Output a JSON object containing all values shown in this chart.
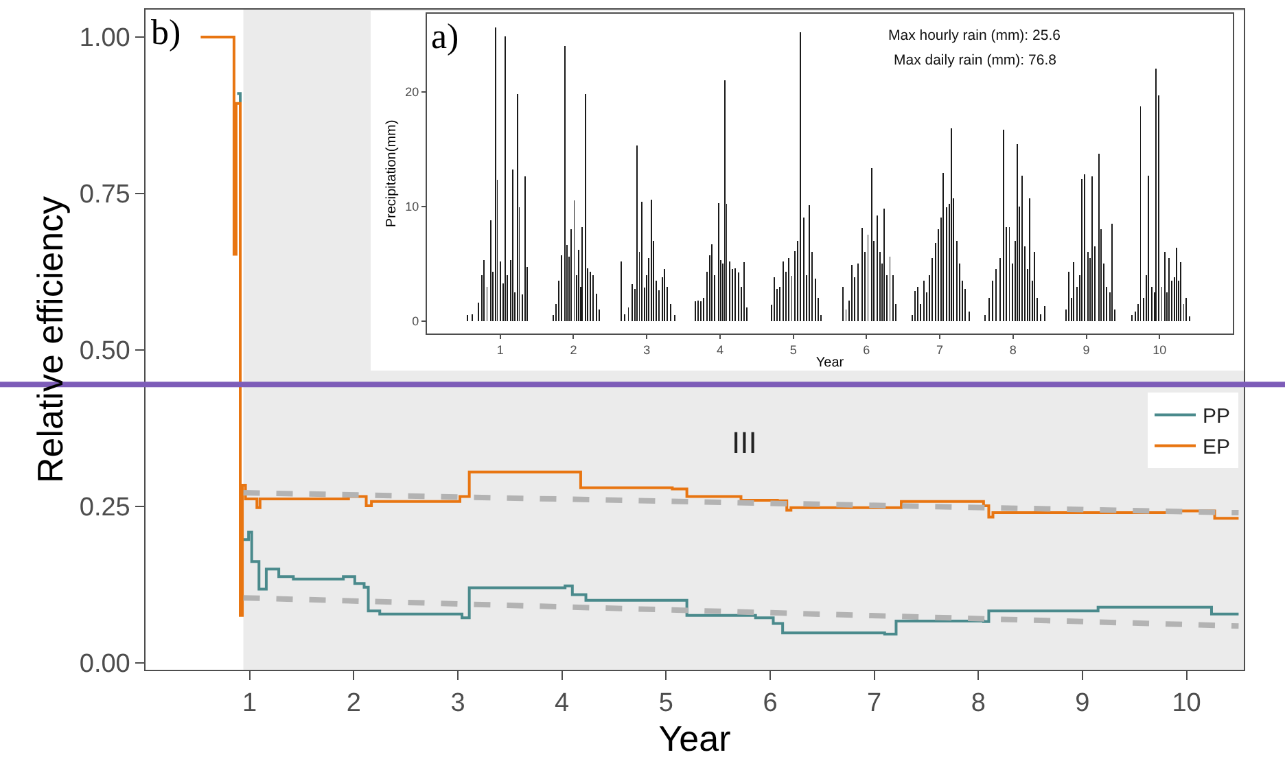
{
  "chart_data": [
    {
      "type": "bar",
      "xlabel": "Year",
      "ylabel": "Precipitation(mm)",
      "color": "#1a1a1a",
      "annotations": [
        "a)",
        "Max hourly rain (mm): 25.6",
        "Max daily rain (mm): 76.8"
      ],
      "xlim": [
        0,
        11
      ],
      "ylim": [
        -1.1,
        26.8
      ],
      "xticks": [
        1,
        2,
        3,
        4,
        5,
        6,
        7,
        8,
        9,
        10
      ],
      "yticks": [
        0,
        10,
        20
      ],
      "x": [
        0.55,
        0.62,
        0.7,
        0.75,
        0.78,
        0.82,
        0.87,
        0.9,
        0.94,
        0.96,
        1.0,
        1.04,
        1.07,
        1.1,
        1.14,
        1.17,
        1.2,
        1.24,
        1.26,
        1.3,
        1.34,
        1.37,
        1.41,
        1.72,
        1.76,
        1.8,
        1.84,
        1.88,
        1.91,
        1.94,
        1.97,
        2.01,
        2.04,
        2.07,
        2.1,
        2.12,
        2.16,
        2.19,
        2.23,
        2.27,
        2.31,
        2.35,
        2.65,
        2.7,
        2.75,
        2.8,
        2.84,
        2.87,
        2.9,
        2.93,
        2.97,
        3.0,
        3.03,
        3.06,
        3.09,
        3.13,
        3.17,
        3.21,
        3.24,
        3.28,
        3.33,
        3.38,
        3.66,
        3.7,
        3.74,
        3.78,
        3.82,
        3.86,
        3.89,
        3.93,
        3.98,
        4.01,
        4.04,
        4.07,
        4.09,
        4.13,
        4.17,
        4.21,
        4.25,
        4.29,
        4.33,
        4.37,
        4.7,
        4.74,
        4.78,
        4.82,
        4.86,
        4.9,
        4.94,
        4.98,
        5.02,
        5.06,
        5.1,
        5.14,
        5.18,
        5.22,
        5.26,
        5.3,
        5.34,
        5.38,
        5.68,
        5.72,
        5.76,
        5.8,
        5.84,
        5.88,
        5.94,
        5.98,
        6.02,
        6.07,
        6.1,
        6.15,
        6.18,
        6.21,
        6.24,
        6.28,
        6.32,
        6.36,
        6.4,
        6.62,
        6.66,
        6.7,
        6.74,
        6.78,
        6.82,
        6.86,
        6.9,
        6.94,
        6.98,
        7.02,
        7.05,
        7.09,
        7.13,
        7.16,
        7.19,
        7.23,
        7.27,
        7.31,
        7.35,
        7.4,
        7.62,
        7.67,
        7.72,
        7.77,
        7.82,
        7.87,
        7.91,
        7.95,
        7.99,
        8.03,
        8.06,
        8.09,
        8.12,
        8.16,
        8.2,
        8.23,
        8.26,
        8.29,
        8.33,
        8.38,
        8.43,
        8.72,
        8.76,
        8.8,
        8.83,
        8.87,
        8.91,
        8.94,
        8.98,
        9.02,
        9.05,
        9.08,
        9.12,
        9.17,
        9.2,
        9.24,
        9.28,
        9.32,
        9.35,
        9.39,
        9.62,
        9.67,
        9.71,
        9.74,
        9.78,
        9.82,
        9.85,
        9.89,
        9.93,
        9.95,
        9.99,
        10.03,
        10.07,
        10.1,
        10.13,
        10.17,
        10.2,
        10.23,
        10.26,
        10.29,
        10.33,
        10.36,
        10.41
      ],
      "values": [
        0.5,
        0.6,
        1.6,
        4,
        5.3,
        3,
        8.8,
        4.3,
        25.6,
        12.3,
        5.2,
        3.3,
        24.8,
        4.0,
        5.3,
        13.2,
        2.5,
        19.8,
        9.9,
        2.3,
        12.6,
        4.7,
        null,
        0.5,
        1.5,
        3.5,
        5.7,
        24.0,
        6.6,
        5.6,
        8.0,
        10.5,
        4.0,
        6.2,
        3.0,
        8.2,
        19.8,
        4.6,
        4.3,
        4.0,
        2.4,
        1.0,
        5.2,
        0.6,
        1.2,
        3.2,
        2.8,
        15.3,
        6.0,
        10.4,
        2.9,
        4.0,
        5.5,
        10.6,
        7.0,
        3.5,
        2.7,
        3.8,
        4.5,
        3.0,
        1.5,
        0.5,
        1.7,
        1.8,
        1.7,
        2.0,
        4.3,
        5.7,
        6.7,
        4.0,
        10.3,
        5.3,
        5.0,
        21.0,
        10.2,
        5.2,
        4.5,
        4.6,
        4.2,
        3.0,
        5.1,
        1.2,
        1.4,
        3.8,
        2.8,
        3.0,
        5.2,
        4.3,
        5.5,
        3.9,
        6.1,
        7.0,
        25.2,
        9.0,
        4.0,
        10.1,
        6.0,
        3.7,
        2.0,
        0.5,
        3.0,
        1.0,
        1.8,
        4.9,
        3.8,
        5.0,
        8.1,
        6.0,
        7.5,
        13.3,
        7.0,
        9.2,
        6.0,
        5.0,
        9.8,
        4.0,
        5.6,
        4.0,
        1.5,
        0.5,
        2.6,
        3.0,
        1.5,
        3.5,
        2.5,
        4.0,
        5.5,
        6.8,
        8.0,
        9.0,
        12.9,
        9.9,
        10.2,
        16.8,
        10.7,
        7.0,
        5.0,
        3.5,
        2.8,
        0.8,
        0.5,
        2.0,
        3.5,
        4.5,
        5.5,
        16.7,
        8.2,
        8.2,
        5.0,
        7.0,
        15.4,
        10.0,
        12.7,
        6.5,
        4.5,
        10.7,
        3.5,
        6.0,
        2.0,
        0.6,
        1.3,
        1.0,
        4.3,
        2.0,
        5.1,
        3.0,
        4.0,
        12.4,
        12.8,
        6.0,
        5.5,
        12.6,
        6.5,
        14.6,
        8.0,
        5.0,
        3.0,
        2.5,
        8.5,
        1.0,
        0.5,
        0.8,
        1.5,
        18.7,
        2.0,
        4.0,
        12.7,
        3.0,
        2.5,
        22.0,
        19.7,
        3.0,
        6.0,
        2.5,
        5.5,
        3.5,
        3.8,
        6.4,
        3.5,
        5.1,
        1.5,
        2.0,
        0.4
      ]
    },
    {
      "type": "step",
      "xlabel": "Year",
      "ylabel": "Relative efficiency",
      "legend": "right",
      "annotations": [
        "b)"
      ],
      "xlim": [
        0,
        10.55
      ],
      "ylim": [
        -0.011,
        1.044
      ],
      "xticks": [
        1,
        2,
        3,
        4,
        5,
        6,
        7,
        8,
        9,
        10
      ],
      "yticks": [
        {
          "value": 0,
          "label": "0.00"
        },
        {
          "value": 0.25,
          "label": "0.25"
        },
        {
          "value": 0.5,
          "label": "0.50"
        },
        {
          "value": 0.75,
          "label": "0.75"
        },
        {
          "value": 1,
          "label": "1.00"
        }
      ],
      "bands": [
        {
          "axis": "x",
          "from": 0.94,
          "to": 10.55,
          "label": "III",
          "color": "#ebebeb"
        }
      ],
      "ref_lines": [
        {
          "axis": "y",
          "value": 0.445,
          "color": "#7d5cb8"
        }
      ],
      "series": [
        {
          "name": "PP",
          "color": "#4a8a8c",
          "x": [
            0.88,
            0.91,
            0.99,
            1.02,
            1.09,
            1.13,
            1.16,
            1.22,
            1.28,
            1.42,
            1.9,
            2.01,
            2.1,
            2.14,
            2.25,
            2.91,
            3.04,
            3.11,
            4.03,
            4.1,
            4.23,
            5.11,
            5.2,
            5.86,
            6.03,
            6.12,
            7.1,
            7.21,
            8.05,
            8.1,
            8.97,
            9.15,
            9.94,
            10.24,
            10.5
          ],
          "values": [
            0.91,
            0.197,
            0.209,
            0.162,
            0.118,
            0.118,
            0.15,
            0.15,
            0.138,
            0.134,
            0.138,
            0.127,
            0.121,
            0.083,
            0.078,
            0.078,
            0.072,
            0.12,
            0.123,
            0.109,
            0.1,
            0.1,
            0.076,
            0.072,
            0.063,
            0.048,
            0.046,
            0.067,
            0.066,
            0.083,
            0.083,
            0.089,
            0.089,
            0.078,
            0.078
          ]
        },
        {
          "name": "EP",
          "color": "#e87511",
          "x": [
            0.53,
            0.85,
            0.87,
            0.91,
            0.93,
            0.96,
            1.07,
            1.1,
            1.33,
            1.88,
            1.95,
            2.12,
            2.17,
            2.86,
            3.02,
            3.11,
            4.05,
            4.18,
            5.06,
            5.2,
            5.72,
            6.07,
            6.16,
            6.2,
            7.21,
            7.26,
            7.91,
            8.05,
            8.1,
            8.14,
            9.06,
            9.94,
            10.27,
            10.5
          ],
          "values": [
            1.0,
            0.653,
            0.894,
            0.076,
            0.284,
            0.262,
            0.248,
            0.262,
            0.262,
            0.262,
            0.266,
            0.251,
            0.258,
            0.258,
            0.266,
            0.305,
            0.305,
            0.28,
            0.278,
            0.266,
            0.26,
            0.259,
            0.244,
            0.248,
            0.248,
            0.258,
            0.258,
            0.251,
            0.233,
            0.24,
            0.24,
            0.243,
            0.231,
            0.231
          ]
        },
        {
          "type": "line",
          "color": "#b3b3b3",
          "line_style": "dashed",
          "x": [
            0.94,
            10.5
          ],
          "values": [
            0.272,
            0.24
          ]
        },
        {
          "type": "line",
          "color": "#b3b3b3",
          "line_style": "dashed",
          "x": [
            0.94,
            10.5
          ],
          "values": [
            0.104,
            0.059
          ]
        }
      ]
    }
  ]
}
